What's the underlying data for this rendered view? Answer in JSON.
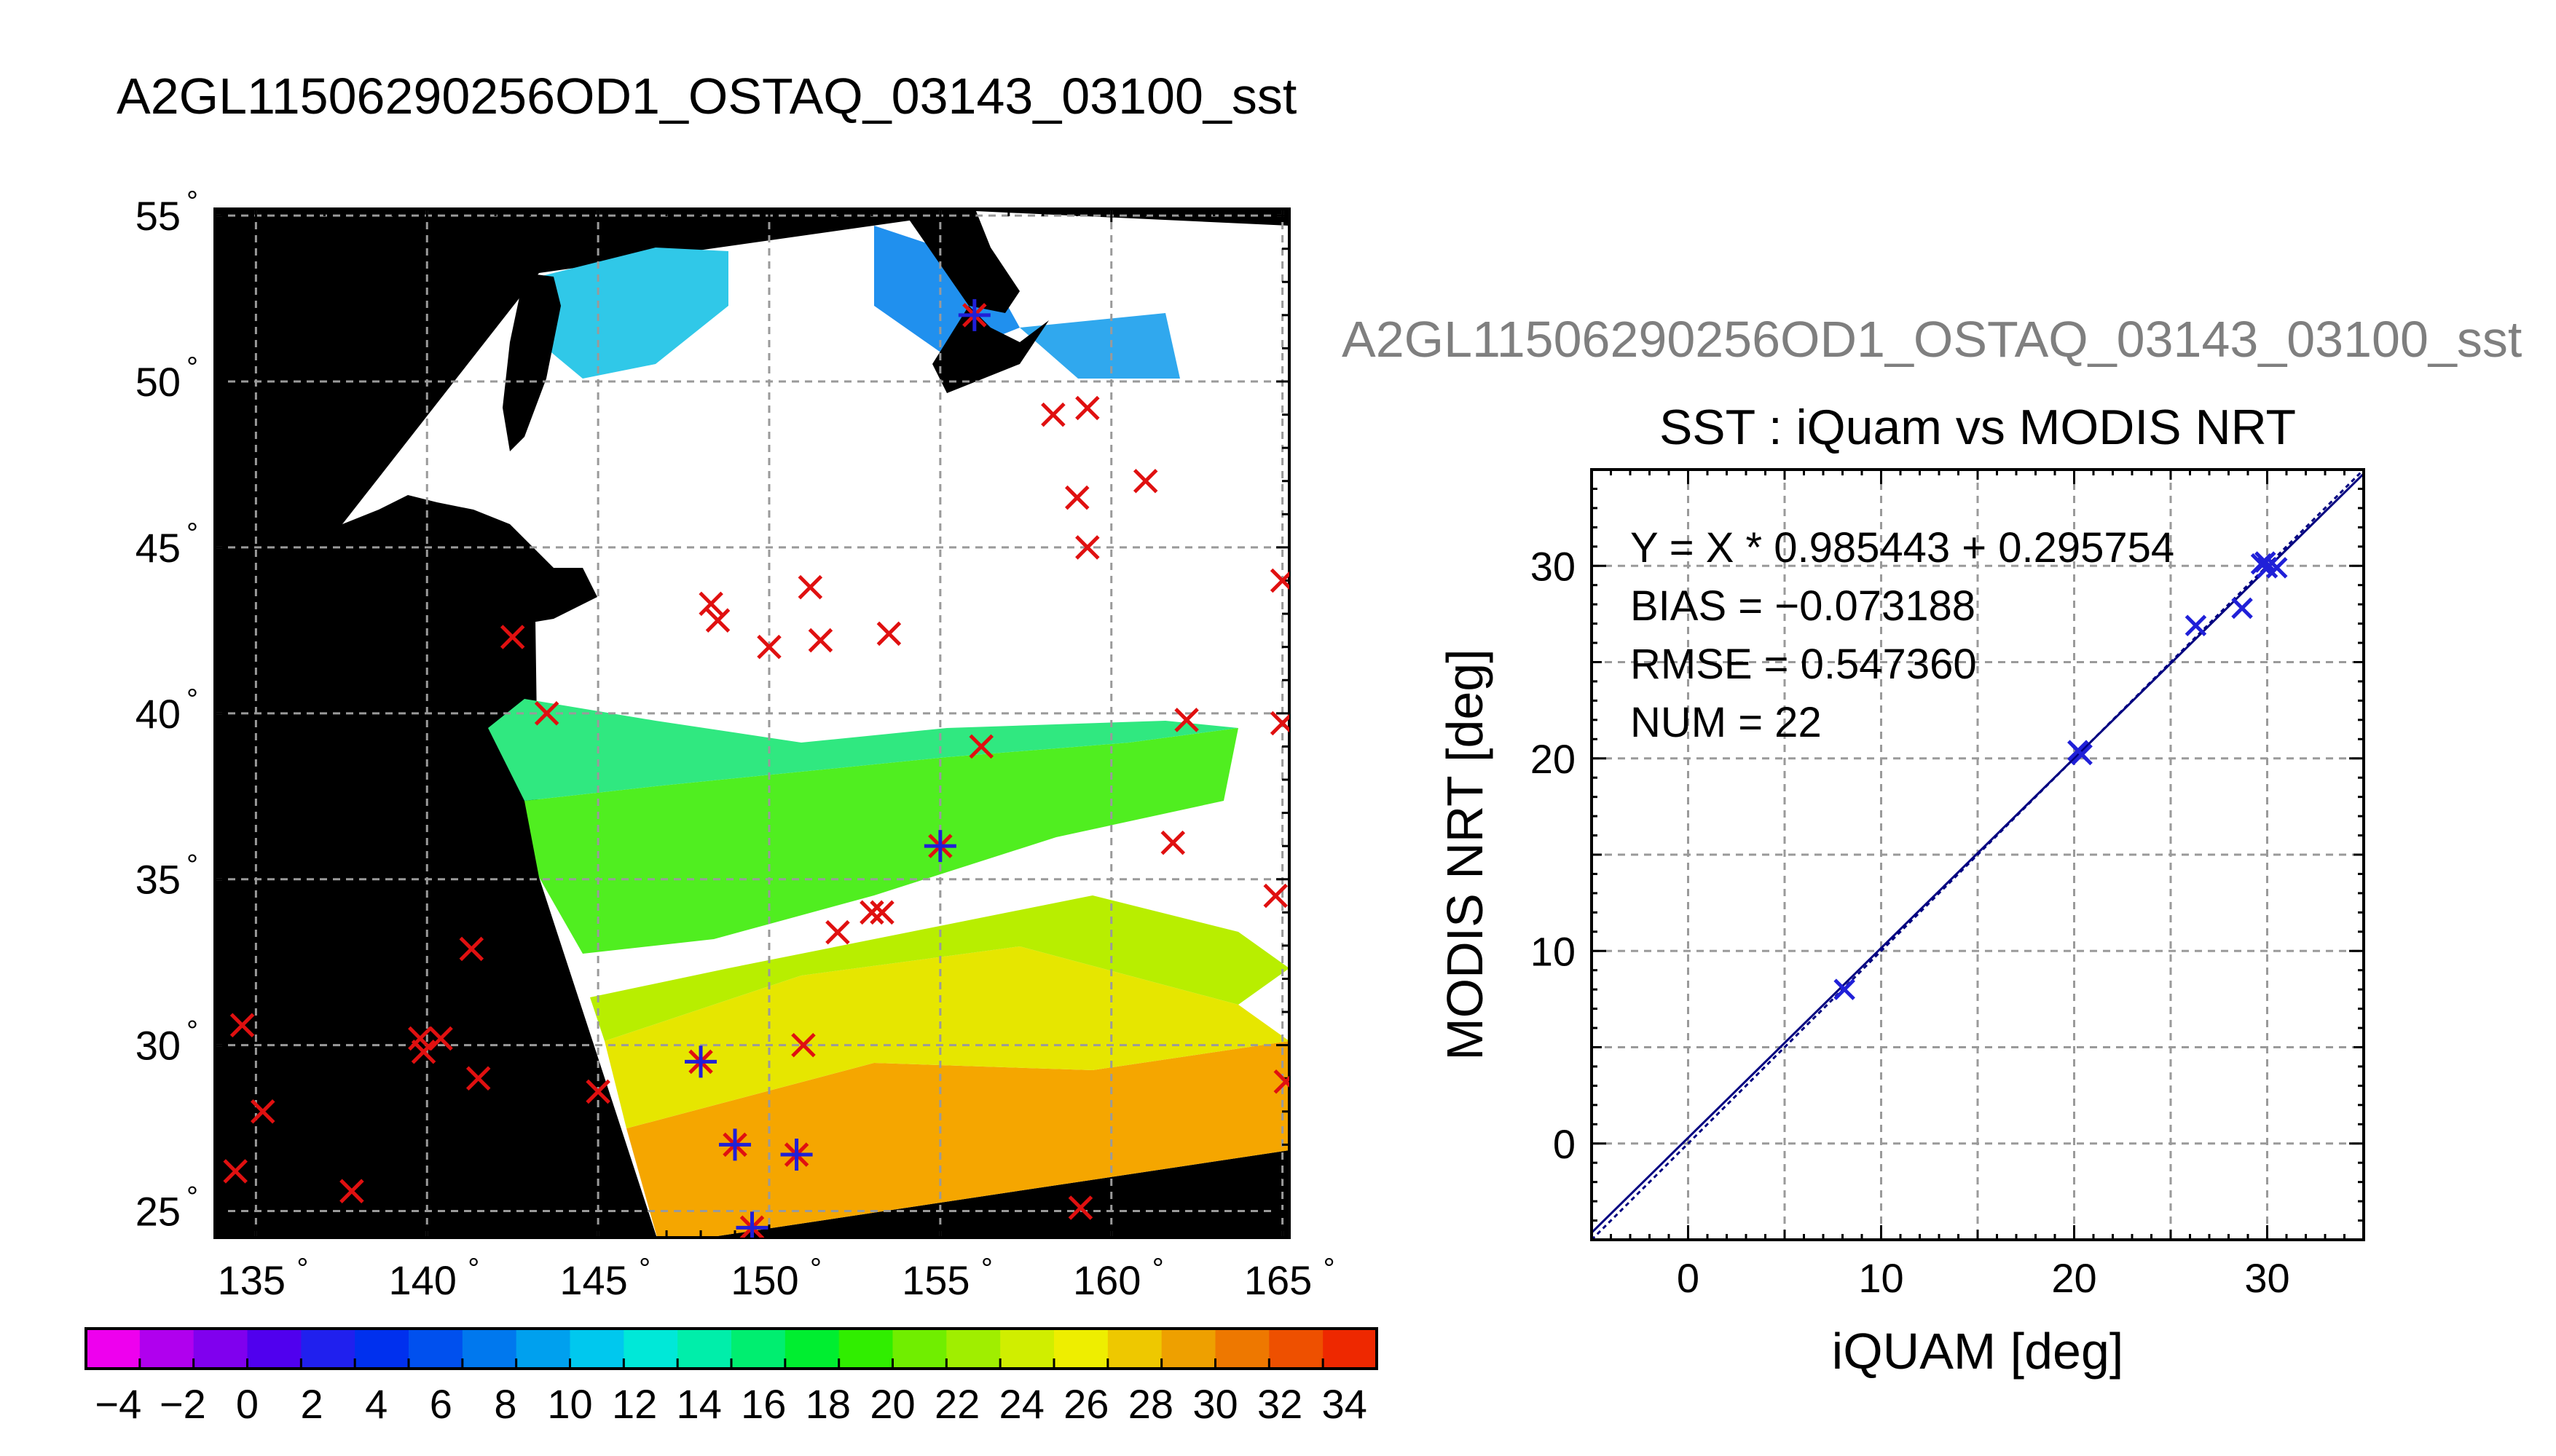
{
  "header": {
    "title": "A2GL11506290256OD1_OSTAQ_03143_03100_sst",
    "second_title": "A2GL11506290256OD1_OSTAQ_03143_03100_sst"
  },
  "colors": {
    "observation_mark": "#e01010",
    "matched_mark": "#2020d8",
    "fit_line": "#000080",
    "land": "#000000",
    "cloud": "#ffffff"
  },
  "map": {
    "lon_ticks": [
      "135",
      "140",
      "145",
      "150",
      "155",
      "160",
      "165"
    ],
    "lat_ticks": [
      "55",
      "50",
      "45",
      "40",
      "35",
      "30",
      "25"
    ],
    "degree_symbol": "°"
  },
  "colorbar": {
    "labels": [
      "−4",
      "−2",
      "0",
      "2",
      "4",
      "6",
      "8",
      "10",
      "12",
      "14",
      "16",
      "18",
      "20",
      "22",
      "24",
      "26",
      "28",
      "30",
      "32",
      "34"
    ],
    "colors": [
      "#ee00ee",
      "#b000ee",
      "#8000ee",
      "#5000ee",
      "#2020ee",
      "#0030ee",
      "#0050ee",
      "#0078ee",
      "#00a0ee",
      "#00c8ee",
      "#00e8d8",
      "#00eeaa",
      "#00ee70",
      "#00ee30",
      "#30ee00",
      "#70ee00",
      "#a0ee00",
      "#d0ee00",
      "#eeee00",
      "#eec800",
      "#eea000",
      "#ee7800",
      "#ee5000",
      "#ee2800"
    ]
  },
  "chart_data": {
    "type": "scatter",
    "title": "SST : iQuam vs MODIS NRT",
    "xlabel": "iQUAM [deg]",
    "ylabel": "MODIS NRT [deg]",
    "xlim": [
      -5,
      35
    ],
    "ylim": [
      -5,
      35
    ],
    "x_ticks": [
      "0",
      "10",
      "20",
      "30"
    ],
    "y_ticks": [
      "0",
      "10",
      "20",
      "30"
    ],
    "grid": true,
    "stats": [
      "Y = X * 0.985443 + 0.295754",
      "BIAS = −0.073188",
      "RMSE = 0.547360",
      "NUM = 22"
    ],
    "fit": {
      "slope": 0.985443,
      "intercept": 0.295754
    },
    "points": [
      {
        "x": 8.1,
        "y": 8.0
      },
      {
        "x": 20.2,
        "y": 20.4
      },
      {
        "x": 20.4,
        "y": 20.2
      },
      {
        "x": 26.3,
        "y": 26.9
      },
      {
        "x": 28.7,
        "y": 27.8
      },
      {
        "x": 29.7,
        "y": 30.1
      },
      {
        "x": 30.0,
        "y": 29.9
      },
      {
        "x": 30.5,
        "y": 29.9
      },
      {
        "x": 29.9,
        "y": 30.2
      }
    ]
  },
  "map_obs": {
    "red_marks": [
      [
        151.0,
        30.0
      ],
      [
        155.0,
        36.0
      ],
      [
        156.0,
        52.0
      ],
      [
        158.3,
        49.0
      ],
      [
        159.3,
        49.2
      ],
      [
        159.0,
        46.5
      ],
      [
        159.3,
        45.0
      ],
      [
        161.0,
        47.0
      ],
      [
        148.3,
        43.3
      ],
      [
        148.5,
        42.8
      ],
      [
        150.0,
        42.0
      ],
      [
        151.2,
        43.8
      ],
      [
        151.5,
        42.2
      ],
      [
        153.5,
        42.4
      ],
      [
        142.5,
        42.3
      ],
      [
        143.5,
        40.0
      ],
      [
        156.2,
        39.0
      ],
      [
        162.2,
        39.8
      ],
      [
        165.0,
        44.0
      ],
      [
        165.0,
        39.7
      ],
      [
        161.8,
        36.1
      ],
      [
        164.8,
        34.5
      ],
      [
        152.0,
        33.4
      ],
      [
        153.0,
        34.0
      ],
      [
        153.3,
        34.0
      ],
      [
        141.3,
        32.9
      ],
      [
        134.6,
        30.6
      ],
      [
        135.2,
        28.0
      ],
      [
        139.8,
        30.2
      ],
      [
        139.9,
        29.8
      ],
      [
        140.4,
        30.2
      ],
      [
        141.5,
        29.0
      ],
      [
        145.0,
        28.6
      ],
      [
        134.4,
        26.2
      ],
      [
        137.8,
        25.6
      ],
      [
        159.1,
        25.1
      ],
      [
        148.0,
        29.5
      ],
      [
        149.0,
        27.0
      ],
      [
        150.8,
        26.7
      ],
      [
        149.5,
        24.5
      ],
      [
        165.1,
        28.9
      ]
    ],
    "matched_marks": [
      [
        148.0,
        29.5
      ],
      [
        149.0,
        27.0
      ],
      [
        150.8,
        26.7
      ],
      [
        149.5,
        24.5
      ],
      [
        155.0,
        36.0
      ],
      [
        156.0,
        52.0
      ]
    ]
  }
}
